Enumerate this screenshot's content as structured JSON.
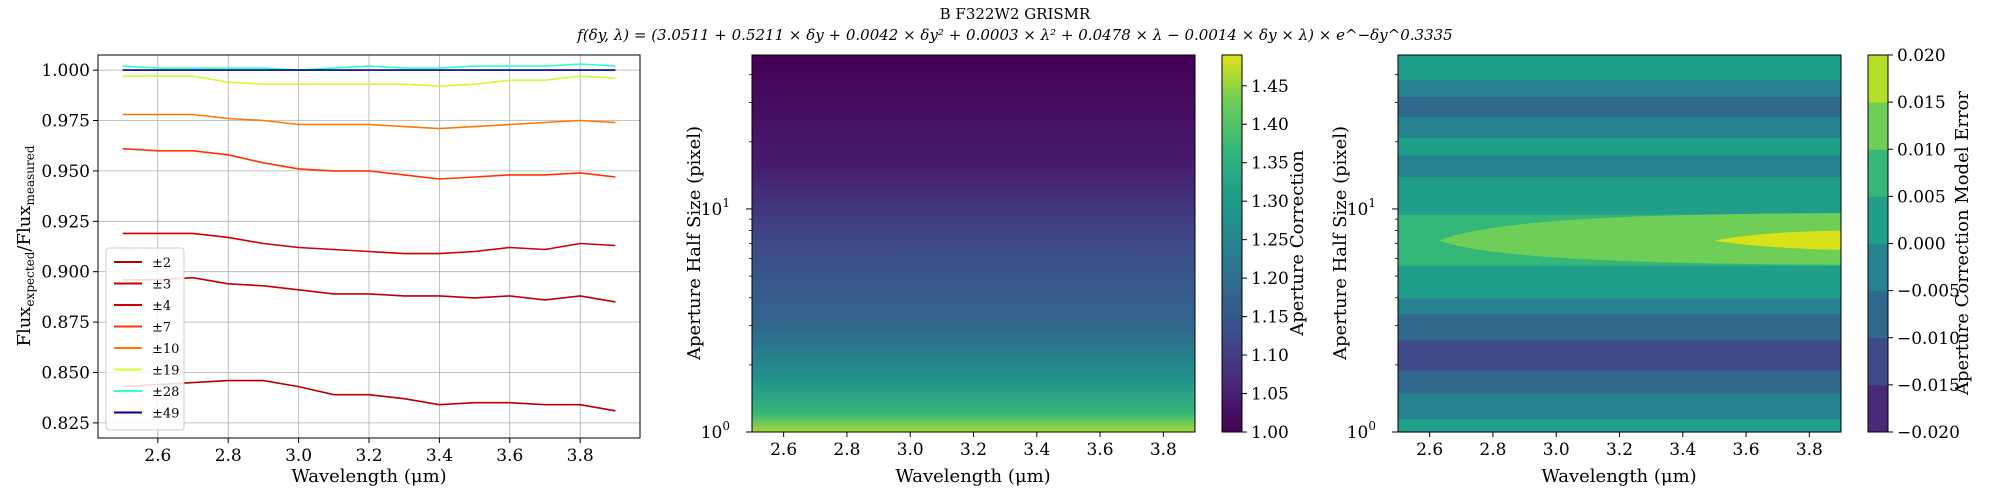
{
  "figure": {
    "title": "B F322W2 GRISMR",
    "formula": "f(δy, λ) = (3.0511 + 0.5211 × δy + 0.0042 × δy² + 0.0003 × λ² + 0.0478 × λ − 0.0014 × δy × λ) × e^−δy^0.3335"
  },
  "colors": {
    "pm2": "#b40000",
    "pm3": "#c00000",
    "pm4": "#cc0000",
    "pm7": "#ff3300",
    "pm10": "#ff7700",
    "pm19": "#ccff33",
    "pm28": "#33ffcc",
    "pm49": "#000080"
  },
  "chart_data": [
    {
      "type": "line",
      "xlabel": "Wavelength (μm)",
      "ylabel_main": "Flux",
      "ylabel_sub1": "expected",
      "ylabel_mid": "/Flux",
      "ylabel_sub2": "measured",
      "xlim": [
        2.43,
        3.97
      ],
      "ylim": [
        0.8175,
        1.0075
      ],
      "xticks": [
        2.6,
        2.8,
        3.0,
        3.2,
        3.4,
        3.6,
        3.8
      ],
      "xtick_labels": [
        "2.6",
        "2.8",
        "3.0",
        "3.2",
        "3.4",
        "3.6",
        "3.8"
      ],
      "yticks": [
        0.825,
        0.85,
        0.875,
        0.9,
        0.925,
        0.95,
        0.975,
        1.0
      ],
      "ytick_labels": [
        "0.825",
        "0.850",
        "0.875",
        "0.900",
        "0.925",
        "0.950",
        "0.975",
        "1.000"
      ],
      "grid": true,
      "legend_position": "lower-left",
      "x": [
        2.5,
        2.6,
        2.7,
        2.8,
        2.9,
        3.0,
        3.1,
        3.2,
        3.3,
        3.4,
        3.5,
        3.6,
        3.7,
        3.8,
        3.9
      ],
      "series": [
        {
          "name": "±2",
          "color_key": "pm2",
          "values": [
            0.843,
            0.844,
            0.845,
            0.846,
            0.846,
            0.843,
            0.839,
            0.839,
            0.837,
            0.834,
            0.835,
            0.835,
            0.834,
            0.834,
            0.831
          ]
        },
        {
          "name": "±3",
          "color_key": "pm3",
          "values": [
            0.896,
            0.896,
            0.897,
            0.894,
            0.893,
            0.891,
            0.889,
            0.889,
            0.888,
            0.888,
            0.887,
            0.888,
            0.886,
            0.888,
            0.885
          ]
        },
        {
          "name": "±4",
          "color_key": "pm4",
          "values": [
            0.919,
            0.919,
            0.919,
            0.917,
            0.914,
            0.912,
            0.911,
            0.91,
            0.909,
            0.909,
            0.91,
            0.912,
            0.911,
            0.914,
            0.913
          ]
        },
        {
          "name": "±7",
          "color_key": "pm7",
          "values": [
            0.961,
            0.96,
            0.96,
            0.958,
            0.954,
            0.951,
            0.95,
            0.95,
            0.948,
            0.946,
            0.947,
            0.948,
            0.948,
            0.949,
            0.947
          ]
        },
        {
          "name": "±10",
          "color_key": "pm10",
          "values": [
            0.978,
            0.978,
            0.978,
            0.976,
            0.975,
            0.973,
            0.973,
            0.973,
            0.972,
            0.971,
            0.972,
            0.973,
            0.974,
            0.975,
            0.974
          ]
        },
        {
          "name": "±19",
          "color_key": "pm19",
          "values": [
            0.997,
            0.997,
            0.997,
            0.994,
            0.993,
            0.993,
            0.993,
            0.993,
            0.993,
            0.992,
            0.993,
            0.995,
            0.995,
            0.997,
            0.996
          ]
        },
        {
          "name": "±28",
          "color_key": "pm28",
          "values": [
            1.002,
            1.001,
            1.001,
            1.001,
            1.001,
            1.0,
            1.001,
            1.002,
            1.001,
            1.001,
            1.002,
            1.002,
            1.002,
            1.003,
            1.002
          ]
        },
        {
          "name": "±49",
          "color_key": "pm49",
          "values": [
            1.0,
            1.0,
            1.0,
            1.0,
            1.0,
            1.0,
            1.0,
            1.0,
            1.0,
            1.0,
            1.0,
            1.0,
            1.0,
            1.0,
            1.0
          ]
        }
      ]
    },
    {
      "type": "heatmap",
      "xlabel": "Wavelength (μm)",
      "ylabel": "Aperture Half Size (pixel)",
      "xlim": [
        2.5,
        3.9
      ],
      "ylim": [
        1,
        49
      ],
      "yscale": "log",
      "xticks": [
        2.6,
        2.8,
        3.0,
        3.2,
        3.4,
        3.6,
        3.8
      ],
      "xtick_labels": [
        "2.6",
        "2.8",
        "3.0",
        "3.2",
        "3.4",
        "3.6",
        "3.8"
      ],
      "yticks": [
        1,
        10
      ],
      "ytick_base": "10",
      "ytick_exps": [
        "0",
        "1"
      ],
      "colormap": "viridis",
      "colorbar_label": "Aperture Correction",
      "colorbar_range": [
        1.0,
        1.49
      ],
      "colorbar_ticks": [
        1.0,
        1.05,
        1.1,
        1.15,
        1.2,
        1.25,
        1.3,
        1.35,
        1.4,
        1.45
      ],
      "colorbar_tick_labels": [
        "1.00",
        "1.05",
        "1.10",
        "1.15",
        "1.20",
        "1.25",
        "1.30",
        "1.35",
        "1.40",
        "1.45"
      ]
    },
    {
      "type": "contour",
      "xlabel": "Wavelength (μm)",
      "ylabel": "Aperture Half Size (pixel)",
      "xlim": [
        2.5,
        3.9
      ],
      "ylim": [
        1,
        49
      ],
      "yscale": "log",
      "xticks": [
        2.6,
        2.8,
        3.0,
        3.2,
        3.4,
        3.6,
        3.8
      ],
      "xtick_labels": [
        "2.6",
        "2.8",
        "3.0",
        "3.2",
        "3.4",
        "3.6",
        "3.8"
      ],
      "yticks": [
        1,
        10
      ],
      "ytick_base": "10",
      "ytick_exps": [
        "0",
        "1"
      ],
      "colormap": "viridis",
      "colorbar_label": "Aperture Correction Model Error",
      "levels": [
        -0.02,
        -0.015,
        -0.01,
        -0.005,
        0.0,
        0.005,
        0.01,
        0.015,
        0.02
      ],
      "colorbar_tick_labels": [
        "−0.020",
        "−0.015",
        "−0.010",
        "−0.005",
        "0.000",
        "0.005",
        "0.010",
        "0.015",
        "0.020"
      ],
      "bands": [
        {
          "y_from": 1.0,
          "y_to": 1.15,
          "value": 0.0025
        },
        {
          "y_from": 1.15,
          "y_to": 1.5,
          "value": -0.0025
        },
        {
          "y_from": 1.5,
          "y_to": 1.9,
          "value": -0.0075
        },
        {
          "y_from": 1.9,
          "y_to": 2.6,
          "value": -0.0125
        },
        {
          "y_from": 2.6,
          "y_to": 3.4,
          "value": -0.0075
        },
        {
          "y_from": 3.4,
          "y_to": 4.0,
          "value": -0.0025
        },
        {
          "y_from": 4.0,
          "y_to": 5.6,
          "value": 0.0025
        },
        {
          "y_from": 5.6,
          "y_to": 9.5,
          "value": 0.0075
        },
        {
          "y_from": 9.5,
          "y_to": 14.0,
          "value": 0.0025
        },
        {
          "y_from": 14.0,
          "y_to": 17.5,
          "value": -0.0025
        },
        {
          "y_from": 17.5,
          "y_to": 21.0,
          "value": 0.0025
        },
        {
          "y_from": 21.0,
          "y_to": 26.0,
          "value": -0.0025
        },
        {
          "y_from": 26.0,
          "y_to": 32.0,
          "value": -0.0075
        },
        {
          "y_from": 32.0,
          "y_to": 38.0,
          "value": -0.0025
        },
        {
          "y_from": 38.0,
          "y_to": 49.0,
          "value": 0.0025
        }
      ],
      "highlight_value": 0.0125
    }
  ]
}
